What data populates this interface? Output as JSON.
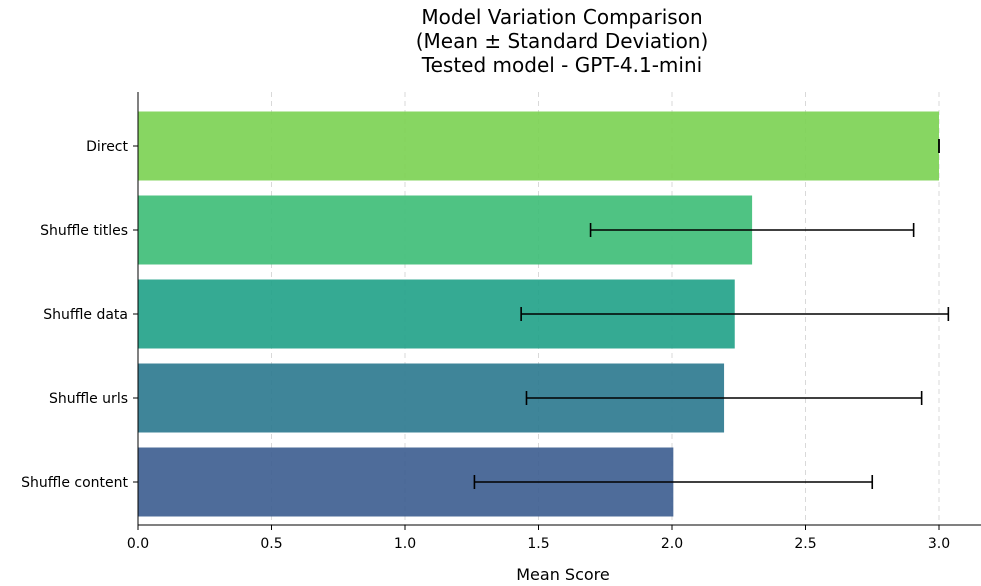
{
  "chart_data": {
    "type": "bar",
    "orientation": "horizontal",
    "title_lines": [
      "Model Variation Comparison",
      "(Mean ± Standard Deviation)",
      "Tested model - GPT-4.1-mini"
    ],
    "xlabel": "Mean Score",
    "ylabel": "",
    "xlim": [
      0,
      3.15
    ],
    "xticks": [
      "0.0",
      "0.5",
      "1.0",
      "1.5",
      "2.0",
      "2.5",
      "3.0"
    ],
    "grid": "vertical-dashed",
    "categories": [
      "Direct",
      "Shuffle titles",
      "Shuffle data",
      "Shuffle urls",
      "Shuffle content"
    ],
    "values": [
      3.0,
      2.3,
      2.235,
      2.195,
      2.005
    ],
    "std": [
      0.0,
      0.605,
      0.8,
      0.74,
      0.745
    ],
    "colors": [
      "#7ad151",
      "#3cbc75",
      "#1fa187",
      "#2a788e",
      "#3b5c8f"
    ]
  }
}
